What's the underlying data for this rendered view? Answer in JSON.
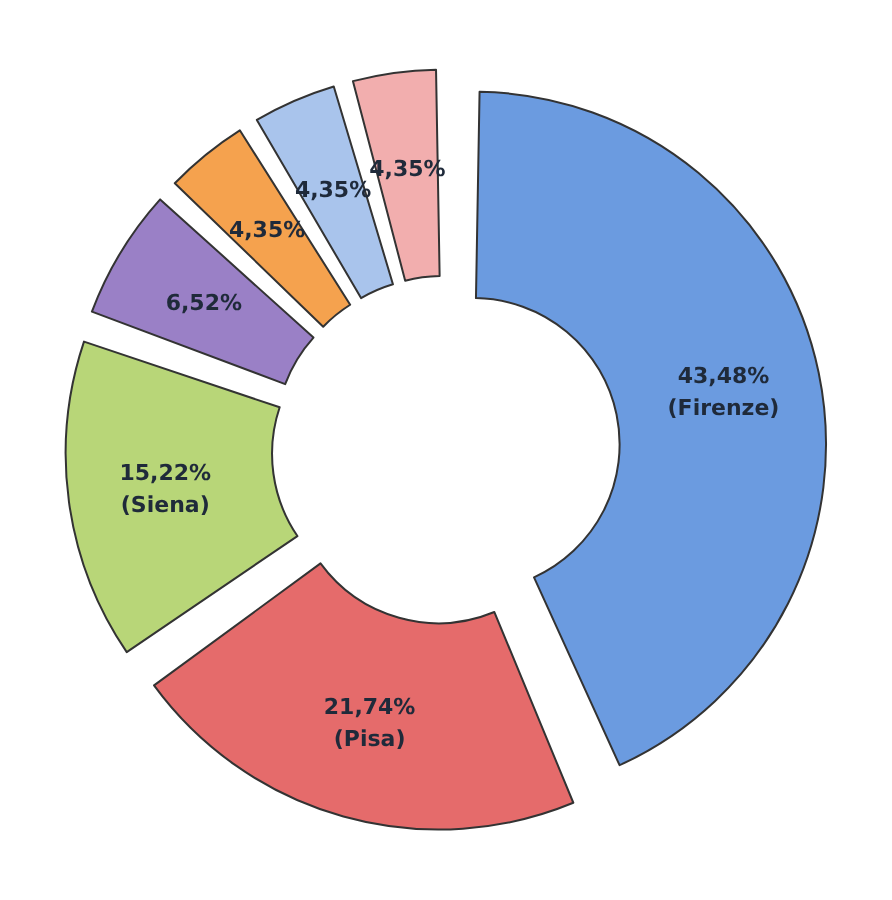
{
  "chart_data": {
    "type": "donut",
    "categories": [
      "(Firenze)",
      "(Pisa)",
      "(Siena)",
      null,
      null,
      null,
      null
    ],
    "values": [
      43.48,
      21.74,
      15.22,
      6.52,
      4.35,
      4.35,
      4.35
    ],
    "value_labels": [
      "43,48%",
      "21,74%",
      "15,22%",
      "6,52%",
      "4,35%",
      "4,35%",
      "4,35%"
    ],
    "colors": [
      "#6b9be0",
      "#e56b6b",
      "#b8d678",
      "#9a80c6",
      "#f5a24e",
      "#a9c4ec",
      "#f2aeae"
    ],
    "legend": false
  }
}
